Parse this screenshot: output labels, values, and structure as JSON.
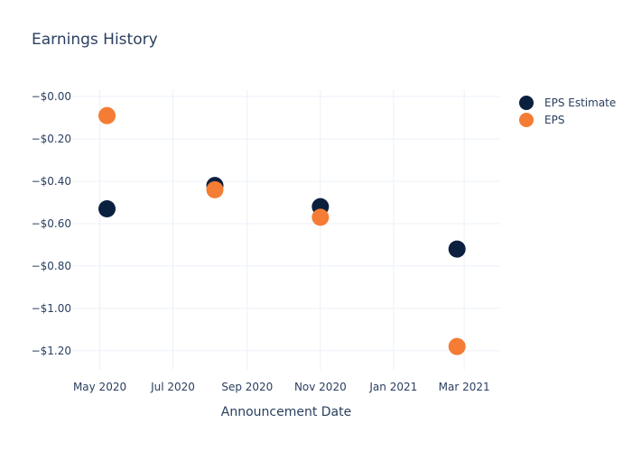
{
  "chart_data": {
    "type": "scatter",
    "title": "Earnings History",
    "xlabel": "Announcement Date",
    "ylabel": "",
    "x_type": "date",
    "xlim": [
      "2020-04-08",
      "2021-03-31"
    ],
    "ylim": [
      -1.29,
      0.03
    ],
    "x_ticks": [
      {
        "date": "2020-05-01",
        "label": "May 2020"
      },
      {
        "date": "2020-07-01",
        "label": "Jul 2020"
      },
      {
        "date": "2020-09-01",
        "label": "Sep 2020"
      },
      {
        "date": "2020-11-01",
        "label": "Nov 2020"
      },
      {
        "date": "2021-01-01",
        "label": "Jan 2021"
      },
      {
        "date": "2021-03-01",
        "label": "Mar 2021"
      }
    ],
    "y_ticks": [
      {
        "value": 0.0,
        "label": "−$0.00"
      },
      {
        "value": -0.2,
        "label": "−$0.20"
      },
      {
        "value": -0.4,
        "label": "−$0.40"
      },
      {
        "value": -0.6,
        "label": "−$0.60"
      },
      {
        "value": -0.8,
        "label": "−$0.80"
      },
      {
        "value": -1.0,
        "label": "−$1.00"
      },
      {
        "value": -1.2,
        "label": "−$1.20"
      }
    ],
    "grid": true,
    "legend_position": "top-right",
    "series": [
      {
        "name": "EPS Estimate",
        "color": "#0b1f3f",
        "points": [
          {
            "x": "2020-05-07",
            "y": -0.53
          },
          {
            "x": "2020-08-05",
            "y": -0.42
          },
          {
            "x": "2020-11-01",
            "y": -0.52
          },
          {
            "x": "2021-02-23",
            "y": -0.72
          }
        ]
      },
      {
        "name": "EPS",
        "color": "#f47c35",
        "points": [
          {
            "x": "2020-05-07",
            "y": -0.09
          },
          {
            "x": "2020-08-05",
            "y": -0.44
          },
          {
            "x": "2020-11-01",
            "y": -0.57
          },
          {
            "x": "2021-02-23",
            "y": -1.18
          }
        ]
      }
    ]
  }
}
